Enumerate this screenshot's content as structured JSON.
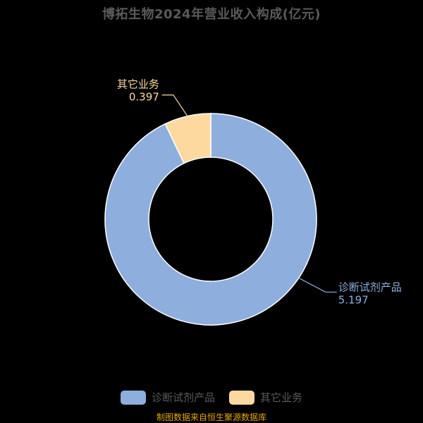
{
  "title": "博拓生物2024年营业收入构成(亿元)",
  "source": "制图数据来自恒生聚源数据库",
  "colors": {
    "background": "#000000",
    "text": "#5a5a5a",
    "source": "#e6a700"
  },
  "chart_data": {
    "type": "pie",
    "variant": "donut",
    "title": "博拓生物2024年营业收入构成(亿元)",
    "unit": "亿元",
    "legend_position": "bottom",
    "series": [
      {
        "name": "诊断试剂产品",
        "value_label": "5.197",
        "value": 5.197,
        "color": "#8eaedd"
      },
      {
        "name": "其它业务",
        "value_label": "0.397",
        "value": 0.397,
        "color": "#fdd9a0"
      }
    ]
  }
}
